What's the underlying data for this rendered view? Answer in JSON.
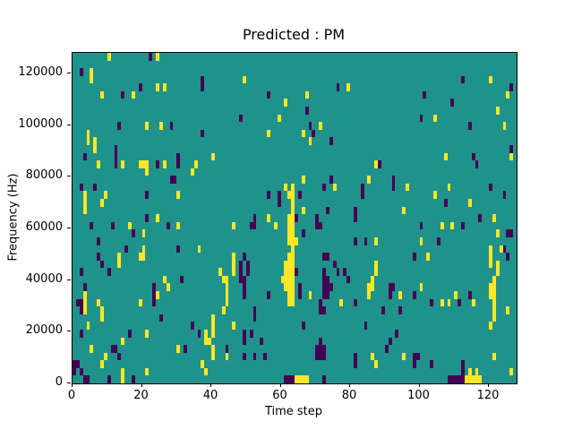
{
  "figure": {
    "title": "Predicted : PM",
    "xlabel": "Time step",
    "ylabel": "Frequency (Hz)"
  },
  "chart_data": {
    "type": "heatmap",
    "title": "Predicted : PM",
    "xlabel": "Time step",
    "ylabel": "Frequency (Hz)",
    "x_range": [
      0,
      128
    ],
    "y_range": [
      0,
      128000
    ],
    "x_tick_labels": [
      "0",
      "20",
      "40",
      "60",
      "80",
      "100",
      "120"
    ],
    "x_tick_values": [
      0,
      20,
      40,
      60,
      80,
      100,
      120
    ],
    "y_tick_labels": [
      "0",
      "20000",
      "40000",
      "60000",
      "80000",
      "100000",
      "120000"
    ],
    "y_tick_values": [
      0,
      20000,
      40000,
      60000,
      80000,
      100000,
      120000
    ],
    "legend": "none",
    "grid": {
      "cols": 128,
      "rows": 43
    },
    "colors": {
      "background_mid_value": "#20928c",
      "high_value": "#fde725",
      "low_value": "#440154",
      "text": "#000000",
      "figure_background": "#ffffff"
    },
    "note": "cells given as [col,row]; col 0 = time step 0 (left), row 0 = top frequency bin (~128000 Hz), row 42 = bottom (0 Hz); all other cells are the teal mid value",
    "cells_yellow": [
      [
        10,
        0
      ],
      [
        24,
        0
      ],
      [
        5,
        2
      ],
      [
        5,
        3
      ],
      [
        8,
        5
      ],
      [
        17,
        5
      ],
      [
        24,
        4
      ],
      [
        26,
        4
      ],
      [
        21,
        9
      ],
      [
        25,
        9
      ],
      [
        4,
        10
      ],
      [
        4,
        11
      ],
      [
        6,
        11
      ],
      [
        6,
        12
      ],
      [
        14,
        14
      ],
      [
        19,
        14
      ],
      [
        20,
        14
      ],
      [
        26,
        14
      ],
      [
        49,
        3
      ],
      [
        61,
        6
      ],
      [
        59,
        8
      ],
      [
        56,
        10
      ],
      [
        40,
        13
      ],
      [
        35,
        14
      ],
      [
        79,
        4
      ],
      [
        67,
        5
      ],
      [
        71,
        9
      ],
      [
        66,
        10
      ],
      [
        68,
        11
      ],
      [
        87,
        14
      ],
      [
        120,
        3
      ],
      [
        125,
        5
      ],
      [
        122,
        7
      ],
      [
        104,
        8
      ],
      [
        124,
        9
      ],
      [
        107,
        13
      ],
      [
        126,
        13
      ],
      [
        7,
        14
      ],
      [
        21,
        14
      ],
      [
        21,
        15
      ],
      [
        3,
        18
      ],
      [
        3,
        19
      ],
      [
        3,
        20
      ],
      [
        9,
        18
      ],
      [
        8,
        19
      ],
      [
        30,
        18
      ],
      [
        24,
        21
      ],
      [
        16,
        22
      ],
      [
        30,
        22
      ],
      [
        20,
        23
      ],
      [
        20,
        25
      ],
      [
        19,
        26
      ],
      [
        20,
        26
      ],
      [
        13,
        26
      ],
      [
        13,
        27
      ],
      [
        34,
        15
      ],
      [
        61,
        17
      ],
      [
        46,
        22
      ],
      [
        56,
        21
      ],
      [
        58,
        22
      ],
      [
        36,
        25
      ],
      [
        46,
        26
      ],
      [
        46,
        27
      ],
      [
        46,
        28
      ],
      [
        42,
        28
      ],
      [
        66,
        16
      ],
      [
        85,
        16
      ],
      [
        75,
        17
      ],
      [
        66,
        20
      ],
      [
        95,
        20
      ],
      [
        64,
        24
      ],
      [
        87,
        24
      ],
      [
        87,
        27
      ],
      [
        87,
        28
      ],
      [
        96,
        17
      ],
      [
        108,
        17
      ],
      [
        104,
        18
      ],
      [
        114,
        19
      ],
      [
        121,
        21
      ],
      [
        106,
        22
      ],
      [
        109,
        22
      ],
      [
        122,
        23
      ],
      [
        100,
        24
      ],
      [
        120,
        25
      ],
      [
        120,
        26
      ],
      [
        120,
        27
      ],
      [
        123,
        25
      ],
      [
        102,
        26
      ],
      [
        122,
        27
      ],
      [
        122,
        28
      ],
      [
        63,
        17
      ],
      [
        63,
        18
      ],
      [
        63,
        19
      ],
      [
        63,
        20
      ],
      [
        63,
        21
      ],
      [
        63,
        22
      ],
      [
        63,
        23
      ],
      [
        63,
        24
      ],
      [
        63,
        25
      ],
      [
        63,
        26
      ],
      [
        63,
        27
      ],
      [
        63,
        28
      ],
      [
        62,
        18
      ],
      [
        62,
        21
      ],
      [
        62,
        22
      ],
      [
        62,
        23
      ],
      [
        62,
        24
      ],
      [
        62,
        26
      ],
      [
        62,
        27
      ],
      [
        62,
        28
      ],
      [
        61,
        27
      ],
      [
        61,
        28
      ],
      [
        26,
        29
      ],
      [
        3,
        31
      ],
      [
        3,
        32
      ],
      [
        3,
        33
      ],
      [
        27,
        30
      ],
      [
        7,
        32
      ],
      [
        19,
        32
      ],
      [
        24,
        31
      ],
      [
        8,
        33
      ],
      [
        8,
        34
      ],
      [
        4,
        35
      ],
      [
        21,
        36
      ],
      [
        5,
        38
      ],
      [
        14,
        37
      ],
      [
        30,
        38
      ],
      [
        9,
        39
      ],
      [
        8,
        40
      ],
      [
        14,
        41
      ],
      [
        14,
        42
      ],
      [
        21,
        41
      ],
      [
        43,
        29
      ],
      [
        44,
        29
      ],
      [
        44,
        30
      ],
      [
        44,
        31
      ],
      [
        44,
        32
      ],
      [
        60,
        29
      ],
      [
        61,
        29
      ],
      [
        62,
        29
      ],
      [
        63,
        29
      ],
      [
        61,
        30
      ],
      [
        62,
        30
      ],
      [
        63,
        30
      ],
      [
        62,
        31
      ],
      [
        63,
        31
      ],
      [
        62,
        32
      ],
      [
        63,
        32
      ],
      [
        40,
        34
      ],
      [
        40,
        35
      ],
      [
        40,
        36
      ],
      [
        43,
        33
      ],
      [
        38,
        36
      ],
      [
        38,
        37
      ],
      [
        39,
        37
      ],
      [
        46,
        35
      ],
      [
        40,
        38
      ],
      [
        40,
        39
      ],
      [
        44,
        39
      ],
      [
        37,
        40
      ],
      [
        38,
        41
      ],
      [
        86,
        29
      ],
      [
        68,
        31
      ],
      [
        85,
        30
      ],
      [
        85,
        31
      ],
      [
        86,
        30
      ],
      [
        94,
        31
      ],
      [
        77,
        32
      ],
      [
        86,
        39
      ],
      [
        95,
        39
      ],
      [
        87,
        40
      ],
      [
        64,
        42
      ],
      [
        65,
        42
      ],
      [
        66,
        42
      ],
      [
        67,
        42
      ],
      [
        121,
        29
      ],
      [
        121,
        30
      ],
      [
        121,
        31
      ],
      [
        121,
        32
      ],
      [
        121,
        33
      ],
      [
        121,
        34
      ],
      [
        120,
        30
      ],
      [
        120,
        31
      ],
      [
        120,
        35
      ],
      [
        100,
        30
      ],
      [
        110,
        31
      ],
      [
        106,
        32
      ],
      [
        108,
        32
      ],
      [
        115,
        32
      ],
      [
        125,
        33
      ],
      [
        121,
        39
      ],
      [
        114,
        41
      ],
      [
        116,
        41
      ],
      [
        126,
        41
      ],
      [
        113,
        42
      ],
      [
        114,
        42
      ],
      [
        115,
        42
      ],
      [
        116,
        42
      ],
      [
        117,
        42
      ]
    ],
    "cells_purple": [
      [
        22,
        0
      ],
      [
        2,
        2
      ],
      [
        14,
        5
      ],
      [
        19,
        4
      ],
      [
        13,
        9
      ],
      [
        28,
        9
      ],
      [
        3,
        13
      ],
      [
        12,
        12
      ],
      [
        12,
        13
      ],
      [
        30,
        13
      ],
      [
        30,
        14
      ],
      [
        37,
        3
      ],
      [
        37,
        4
      ],
      [
        56,
        5
      ],
      [
        48,
        8
      ],
      [
        37,
        10
      ],
      [
        76,
        4
      ],
      [
        67,
        7
      ],
      [
        68,
        9
      ],
      [
        69,
        10
      ],
      [
        74,
        11
      ],
      [
        88,
        14
      ],
      [
        112,
        3
      ],
      [
        126,
        4
      ],
      [
        101,
        5
      ],
      [
        109,
        6
      ],
      [
        100,
        8
      ],
      [
        114,
        9
      ],
      [
        126,
        12
      ],
      [
        115,
        13
      ],
      [
        12,
        14
      ],
      [
        24,
        14
      ],
      [
        28,
        16
      ],
      [
        29,
        16
      ],
      [
        2,
        17
      ],
      [
        6,
        17
      ],
      [
        21,
        18
      ],
      [
        21,
        21
      ],
      [
        5,
        22
      ],
      [
        11,
        22
      ],
      [
        27,
        22
      ],
      [
        7,
        24
      ],
      [
        17,
        23
      ],
      [
        15,
        25
      ],
      [
        30,
        25
      ],
      [
        7,
        26
      ],
      [
        8,
        27
      ],
      [
        10,
        28
      ],
      [
        2,
        28
      ],
      [
        56,
        18
      ],
      [
        59,
        18
      ],
      [
        59,
        19
      ],
      [
        52,
        21
      ],
      [
        51,
        22
      ],
      [
        52,
        22
      ],
      [
        49,
        26
      ],
      [
        48,
        27
      ],
      [
        48,
        28
      ],
      [
        50,
        27
      ],
      [
        50,
        28
      ],
      [
        74,
        16
      ],
      [
        92,
        16
      ],
      [
        92,
        17
      ],
      [
        72,
        17
      ],
      [
        83,
        17
      ],
      [
        83,
        18
      ],
      [
        65,
        18
      ],
      [
        73,
        20
      ],
      [
        81,
        20
      ],
      [
        81,
        21
      ],
      [
        64,
        21
      ],
      [
        70,
        21
      ],
      [
        70,
        22
      ],
      [
        71,
        22
      ],
      [
        66,
        23
      ],
      [
        81,
        24
      ],
      [
        84,
        24
      ],
      [
        72,
        26
      ],
      [
        73,
        26
      ],
      [
        75,
        27
      ],
      [
        72,
        28
      ],
      [
        76,
        28
      ],
      [
        78,
        28
      ],
      [
        64,
        28
      ],
      [
        116,
        14
      ],
      [
        120,
        17
      ],
      [
        124,
        18
      ],
      [
        107,
        19
      ],
      [
        117,
        21
      ],
      [
        100,
        22
      ],
      [
        112,
        22
      ],
      [
        125,
        23
      ],
      [
        126,
        23
      ],
      [
        105,
        24
      ],
      [
        124,
        25
      ],
      [
        98,
        26
      ],
      [
        125,
        26
      ],
      [
        31,
        29
      ],
      [
        3,
        30
      ],
      [
        23,
        30
      ],
      [
        23,
        31
      ],
      [
        23,
        32
      ],
      [
        1,
        32
      ],
      [
        2,
        32
      ],
      [
        2,
        33
      ],
      [
        25,
        34
      ],
      [
        2,
        36
      ],
      [
        16,
        36
      ],
      [
        11,
        38
      ],
      [
        12,
        38
      ],
      [
        13,
        39
      ],
      [
        0,
        40
      ],
      [
        1,
        40
      ],
      [
        0,
        41
      ],
      [
        2,
        41
      ],
      [
        3,
        42
      ],
      [
        4,
        42
      ],
      [
        17,
        42
      ],
      [
        10,
        42
      ],
      [
        48,
        29
      ],
      [
        49,
        29
      ],
      [
        49,
        30
      ],
      [
        49,
        31
      ],
      [
        56,
        31
      ],
      [
        52,
        33
      ],
      [
        52,
        34
      ],
      [
        34,
        35
      ],
      [
        36,
        36
      ],
      [
        49,
        36
      ],
      [
        49,
        37
      ],
      [
        51,
        36
      ],
      [
        54,
        37
      ],
      [
        32,
        38
      ],
      [
        44,
        38
      ],
      [
        49,
        39
      ],
      [
        52,
        39
      ],
      [
        55,
        39
      ],
      [
        61,
        42
      ],
      [
        62,
        42
      ],
      [
        63,
        42
      ],
      [
        72,
        29
      ],
      [
        73,
        29
      ],
      [
        79,
        29
      ],
      [
        65,
        30
      ],
      [
        65,
        31
      ],
      [
        72,
        30
      ],
      [
        73,
        30
      ],
      [
        74,
        30
      ],
      [
        72,
        31
      ],
      [
        73,
        31
      ],
      [
        91,
        30
      ],
      [
        92,
        30
      ],
      [
        91,
        31
      ],
      [
        71,
        32
      ],
      [
        81,
        32
      ],
      [
        71,
        33
      ],
      [
        72,
        33
      ],
      [
        89,
        33
      ],
      [
        94,
        33
      ],
      [
        66,
        35
      ],
      [
        84,
        35
      ],
      [
        93,
        36
      ],
      [
        70,
        38
      ],
      [
        71,
        38
      ],
      [
        72,
        38
      ],
      [
        70,
        39
      ],
      [
        71,
        39
      ],
      [
        72,
        39
      ],
      [
        71,
        37
      ],
      [
        90,
        38
      ],
      [
        91,
        37
      ],
      [
        81,
        39
      ],
      [
        81,
        40
      ],
      [
        72,
        42
      ],
      [
        98,
        31
      ],
      [
        114,
        31
      ],
      [
        103,
        32
      ],
      [
        111,
        32
      ],
      [
        98,
        39
      ],
      [
        99,
        39
      ],
      [
        98,
        40
      ],
      [
        103,
        40
      ],
      [
        112,
        40
      ],
      [
        112,
        41
      ],
      [
        112,
        42
      ],
      [
        108,
        42
      ],
      [
        109,
        42
      ],
      [
        110,
        42
      ],
      [
        111,
        42
      ]
    ]
  }
}
